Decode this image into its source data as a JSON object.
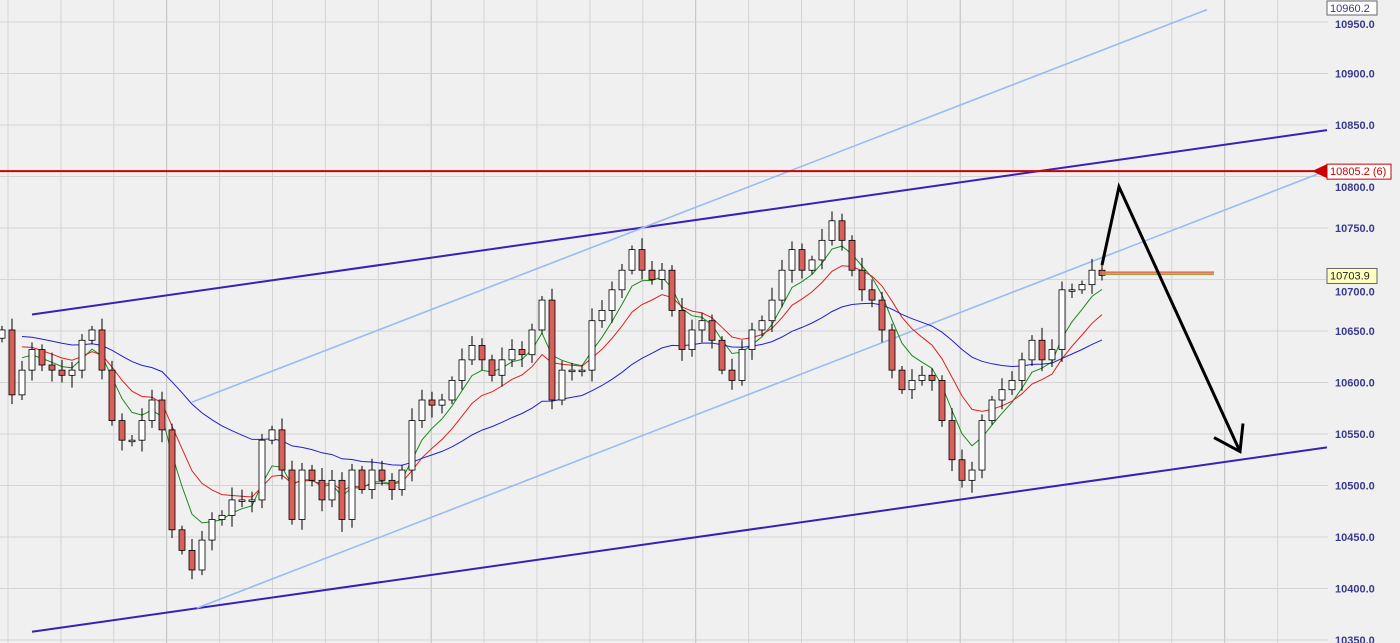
{
  "chart_data": {
    "type": "candlestick",
    "title": "",
    "xlabel": "",
    "ylabel": "",
    "ylim": [
      10350,
      10965
    ],
    "grid": true,
    "y_ticks": [
      "10950.0",
      "10900.0",
      "10850.0",
      "10800.0",
      "10750.0",
      "10700.0",
      "10650.0",
      "10600.0",
      "10550.0",
      "10500.0",
      "10450.0",
      "10400.0",
      "10350.0"
    ],
    "closes": [
      10651,
      10588,
      10612,
      10632,
      10617,
      10612,
      10607,
      10612,
      10641,
      10651,
      10612,
      10563,
      10544,
      10544,
      10563,
      10583,
      10554,
      10457,
      10437,
      10418,
      10447,
      10467,
      10471,
      10486,
      10486,
      10486,
      10544,
      10554,
      10515,
      10467,
      10515,
      10505,
      10486,
      10505,
      10467,
      10515,
      10496,
      10515,
      10505,
      10496,
      10515,
      10563,
      10583,
      10578,
      10583,
      10602,
      10622,
      10636,
      10622,
      10607,
      10622,
      10632,
      10627,
      10651,
      10680,
      10583,
      10612,
      10612,
      10612,
      10660,
      10670,
      10690,
      10709,
      10729,
      10709,
      10700,
      10709,
      10670,
      10632,
      10651,
      10660,
      10641,
      10612,
      10602,
      10632,
      10651,
      10660,
      10680,
      10709,
      10729,
      10709,
      10719,
      10738,
      10757,
      10738,
      10709,
      10690,
      10680,
      10651,
      10612,
      10593,
      10602,
      10607,
      10602,
      10563,
      10525,
      10505,
      10515,
      10563,
      10583,
      10593,
      10602,
      10622,
      10641,
      10622,
      10632,
      10690,
      10690,
      10695,
      10709,
      10704
    ],
    "moving_averages": [
      {
        "period": 5,
        "color": "#1a8a1a"
      },
      {
        "period": 10,
        "color": "#e02020"
      },
      {
        "period": 30,
        "color": "#2020d0"
      }
    ],
    "trendlines": [
      {
        "kind": "channel-upper",
        "color": "#3a1fb8",
        "from": {
          "bar": 3,
          "price": 10666
        },
        "to": {
          "bar": 132.5,
          "price": 10845
        }
      },
      {
        "kind": "channel-lower",
        "color": "#3a1fb8",
        "from": {
          "bar": 3,
          "price": 10358
        },
        "to": {
          "bar": 132.5,
          "price": 10537
        }
      },
      {
        "kind": "light-upper",
        "color": "#99bbf5",
        "from": {
          "bar": 19,
          "price": 10581
        },
        "to": {
          "bar": 120.5,
          "price": 10962
        }
      },
      {
        "kind": "light-lower",
        "color": "#99bbf5",
        "from": {
          "bar": 19.5,
          "price": 10381
        },
        "to": {
          "bar": 132,
          "price": 10804
        }
      }
    ],
    "horizontal_level": {
      "price": 10805.2,
      "label": "10805.2 (6)",
      "color": "#cc0000"
    },
    "last_price": {
      "price": 10703.9,
      "label": "10703.9",
      "color": "#ffffc0"
    },
    "top_label": {
      "price": 10960.2,
      "label": "10960.2"
    },
    "current_level_marker": {
      "price": 10706,
      "from_bar": 110,
      "to_bar": 121.2,
      "color": "#e87060"
    },
    "projection_arrow": [
      {
        "bar": 110,
        "price": 10714
      },
      {
        "bar": 111.7,
        "price": 10790
      },
      {
        "bar": 123.8,
        "price": 10533
      }
    ],
    "colors": {
      "background": "#f0f0f0",
      "up_candle": "#ffffff",
      "down_candle": "#d9605a",
      "wick": "#000000",
      "grid": "#d4d4d4"
    }
  }
}
